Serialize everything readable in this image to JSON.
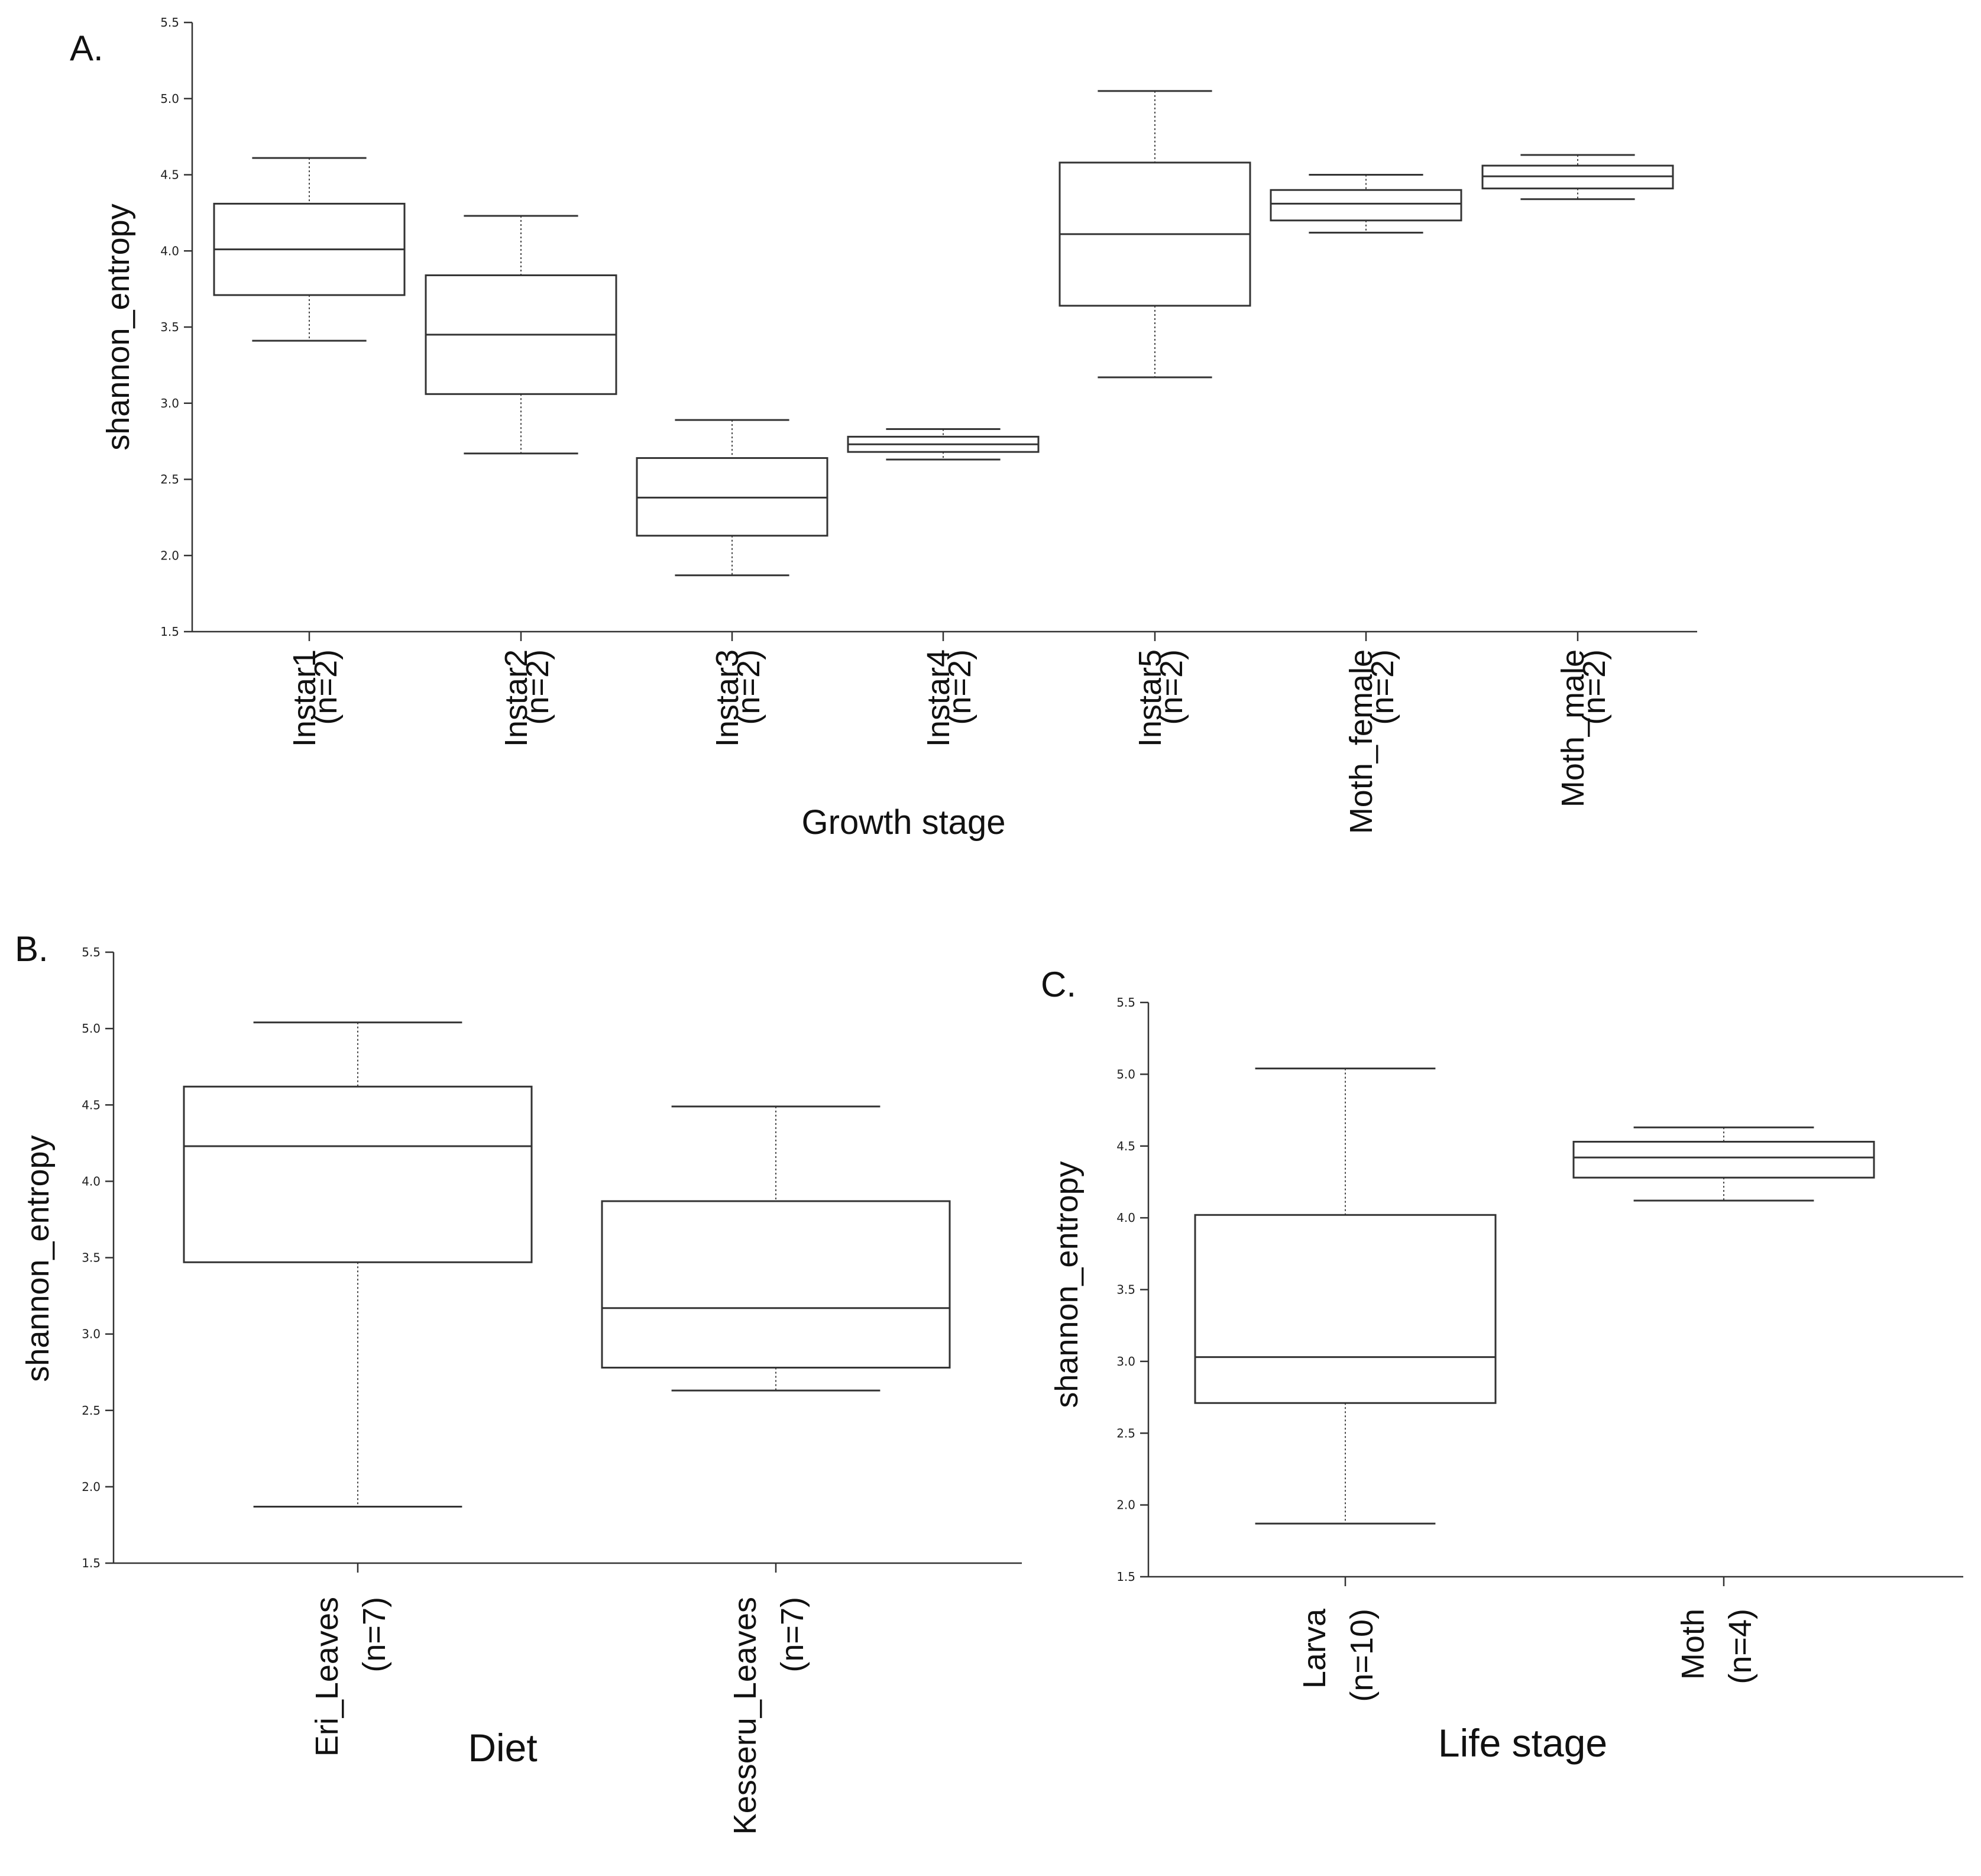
{
  "chart_data": [
    {
      "panel": "A.",
      "type": "boxplot",
      "ylabel": "shannon_entropy",
      "xlabel": "Growth stage",
      "ylim": [
        1.5,
        5.5
      ],
      "yticks": [
        "1.5",
        "2.0",
        "2.5",
        "3.0",
        "3.5",
        "4.0",
        "4.5",
        "5.0",
        "5.5"
      ],
      "groups": [
        {
          "name": "Instar1",
          "n": "(n=2)",
          "min": 3.41,
          "q1": 3.71,
          "median": 4.01,
          "q3": 4.31,
          "max": 4.61
        },
        {
          "name": "Instar2",
          "n": "(n=2)",
          "min": 2.67,
          "q1": 3.06,
          "median": 3.45,
          "q3": 3.84,
          "max": 4.23
        },
        {
          "name": "Instar3",
          "n": "(n=2)",
          "min": 1.87,
          "q1": 2.13,
          "median": 2.38,
          "q3": 2.64,
          "max": 2.89
        },
        {
          "name": "Instar4",
          "n": "(n=2)",
          "min": 2.63,
          "q1": 2.68,
          "median": 2.73,
          "q3": 2.78,
          "max": 2.83
        },
        {
          "name": "Instar5",
          "n": "(n=2)",
          "min": 3.17,
          "q1": 3.64,
          "median": 4.11,
          "q3": 4.58,
          "max": 5.05
        },
        {
          "name": "Moth_female",
          "n": "(n=2)",
          "min": 4.12,
          "q1": 4.2,
          "median": 4.31,
          "q3": 4.4,
          "max": 4.5
        },
        {
          "name": "Moth_male",
          "n": "(n=2)",
          "min": 4.34,
          "q1": 4.41,
          "median": 4.49,
          "q3": 4.56,
          "max": 4.63
        }
      ]
    },
    {
      "panel": "B.",
      "type": "boxplot",
      "ylabel": "shannon_entropy",
      "xlabel": "Diet",
      "ylim": [
        1.5,
        5.5
      ],
      "yticks": [
        "1.5",
        "2.0",
        "2.5",
        "3.0",
        "3.5",
        "4.0",
        "4.5",
        "5.0",
        "5.5"
      ],
      "groups": [
        {
          "name": "Eri_Leaves",
          "n": "(n=7)",
          "min": 1.87,
          "q1": 3.47,
          "median": 4.23,
          "q3": 4.62,
          "max": 5.04
        },
        {
          "name": "Kesseru_Leaves",
          "n": "(n=7)",
          "min": 2.63,
          "q1": 2.78,
          "median": 3.17,
          "q3": 3.87,
          "max": 4.49
        }
      ]
    },
    {
      "panel": "C.",
      "type": "boxplot",
      "ylabel": "shannon_entropy",
      "xlabel": "Life  stage",
      "ylim": [
        1.5,
        5.5
      ],
      "yticks": [
        "1.5",
        "2.0",
        "2.5",
        "3.0",
        "3.5",
        "4.0",
        "4.5",
        "5.0",
        "5.5"
      ],
      "groups": [
        {
          "name": "Larva",
          "n": "(n=10)",
          "min": 1.87,
          "q1": 2.71,
          "median": 3.03,
          "q3": 4.02,
          "max": 5.04
        },
        {
          "name": "Moth",
          "n": "(n=4)",
          "min": 4.12,
          "q1": 4.28,
          "median": 4.42,
          "q3": 4.53,
          "max": 4.63
        }
      ]
    }
  ]
}
